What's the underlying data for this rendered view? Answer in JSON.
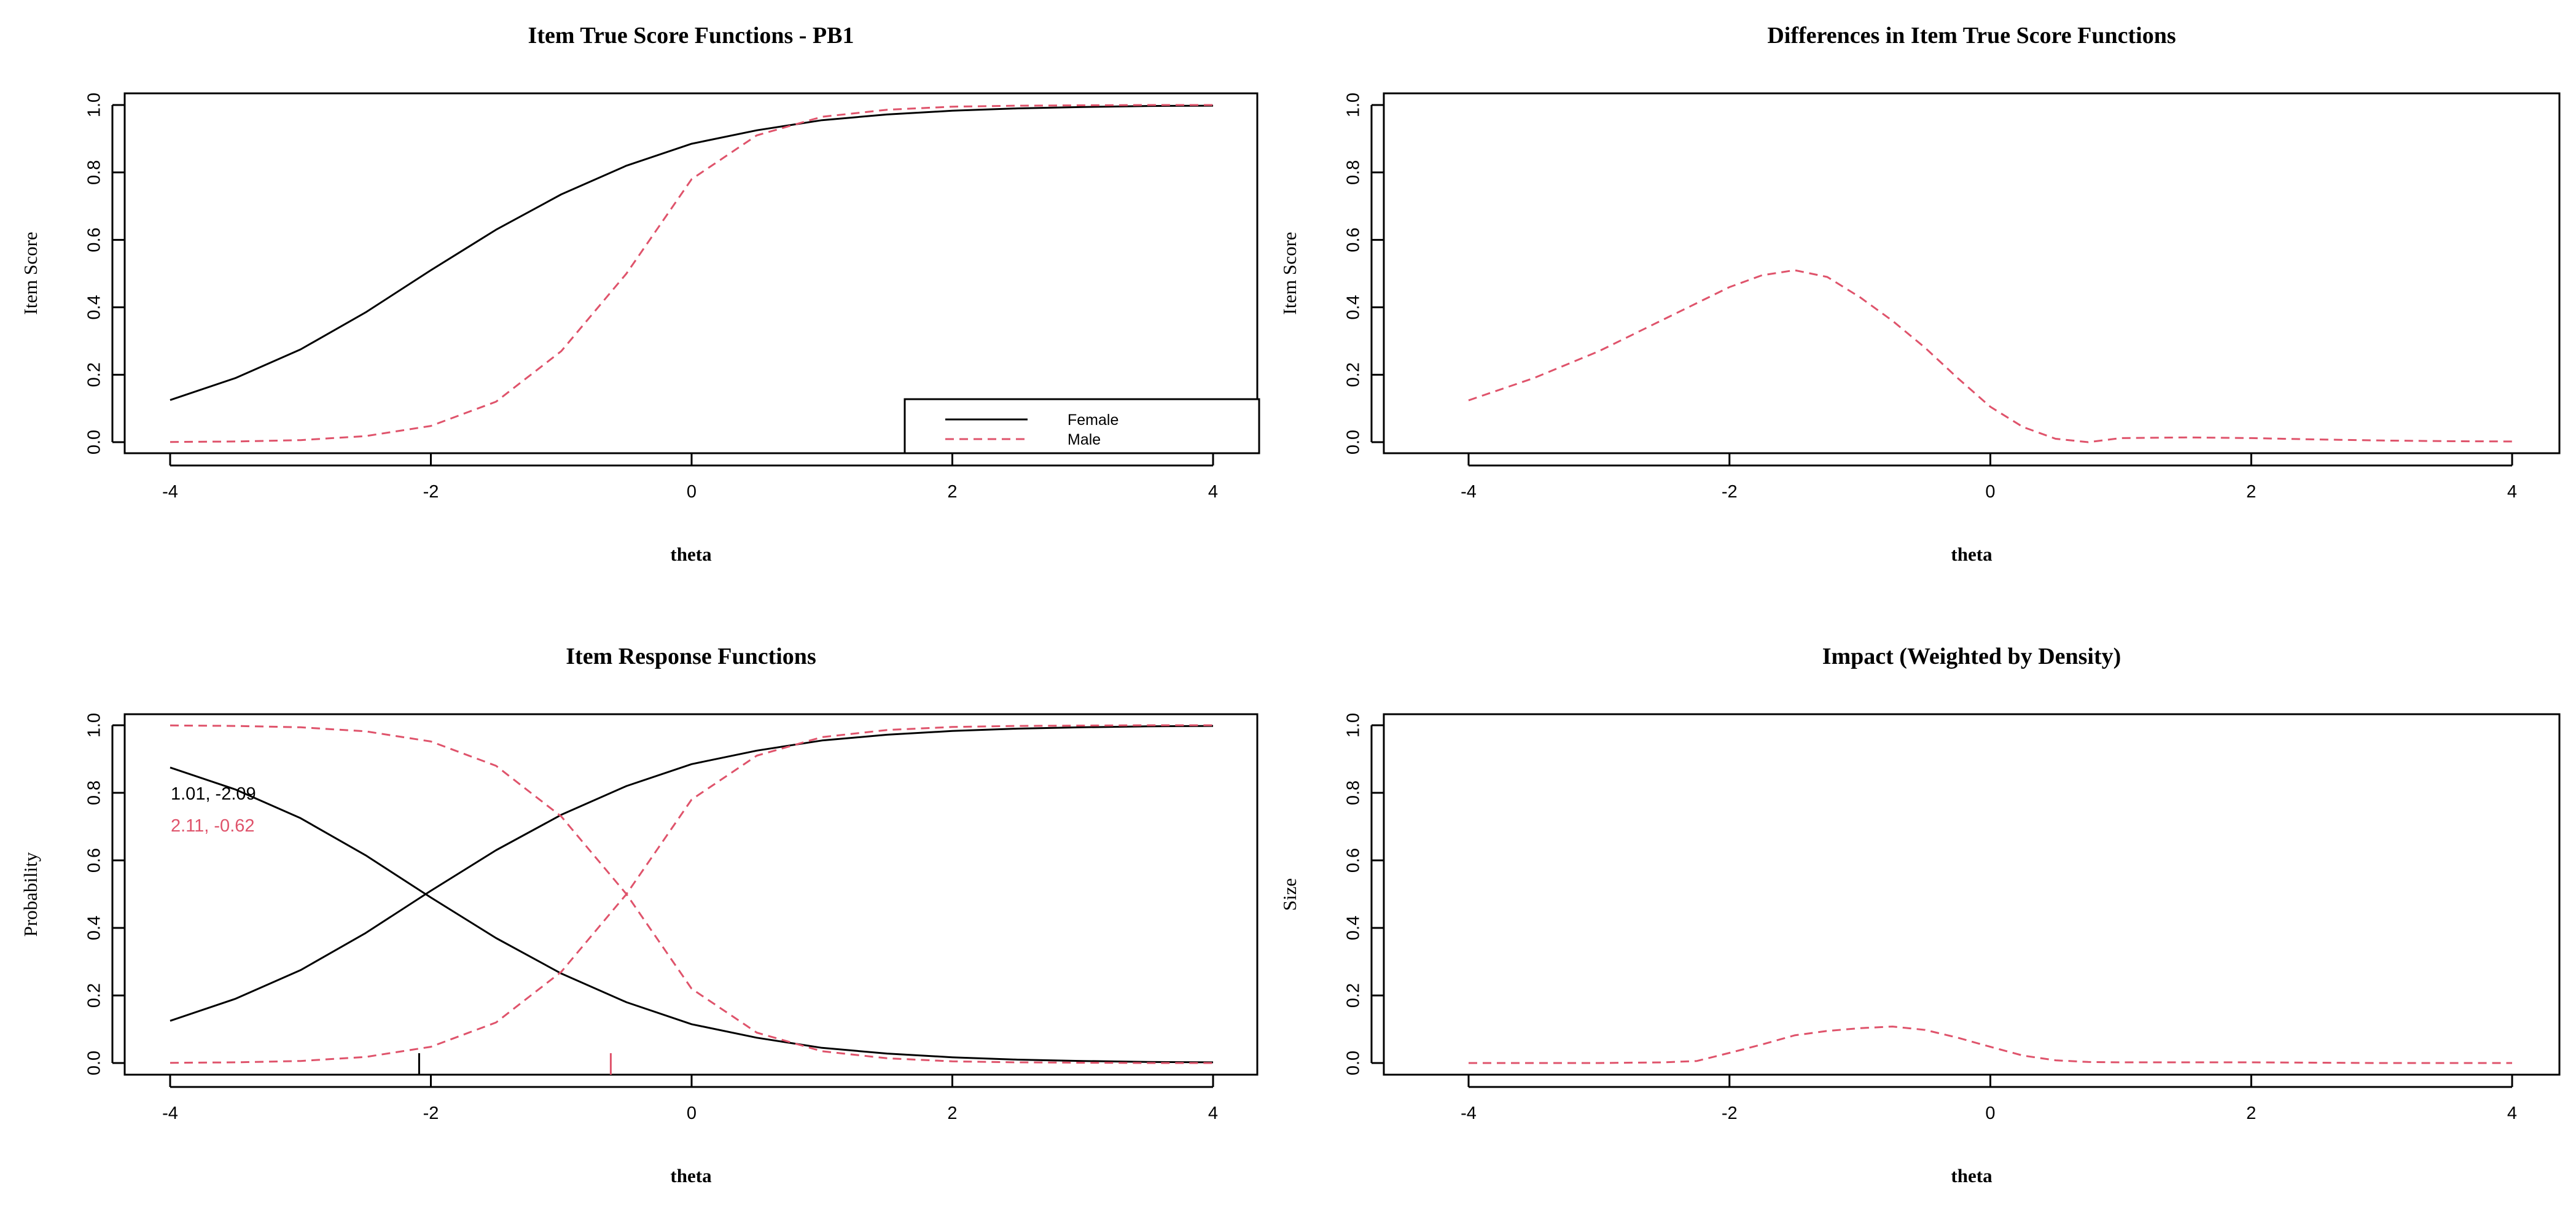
{
  "colors": {
    "female": "#000000",
    "male": "#DF536B"
  },
  "chart_data": [
    {
      "type": "line",
      "title": "Item True Score Functions - PB1",
      "xlabel": "theta",
      "ylabel": "Item Score",
      "xlim": [
        -4,
        4
      ],
      "ylim": [
        0,
        1
      ],
      "xticks": [
        "-4",
        "-2",
        "0",
        "2",
        "4"
      ],
      "yticks": [
        "0.0",
        "0.2",
        "0.4",
        "0.6",
        "0.8",
        "1.0"
      ],
      "legend": {
        "position": "bottom-right",
        "entries": [
          "Female",
          "Male"
        ]
      },
      "series": [
        {
          "name": "Female",
          "style": "solid",
          "color": "#000000",
          "x": [
            -4,
            -3.5,
            -3,
            -2.5,
            -2,
            -1.5,
            -1,
            -0.5,
            0,
            0.5,
            1,
            1.5,
            2,
            2.5,
            3,
            3.5,
            4
          ],
          "values": [
            0.125,
            0.19,
            0.275,
            0.385,
            0.51,
            0.63,
            0.735,
            0.82,
            0.885,
            0.925,
            0.955,
            0.972,
            0.983,
            0.99,
            0.994,
            0.997,
            0.998
          ]
        },
        {
          "name": "Male",
          "style": "dashed",
          "color": "#DF536B",
          "x": [
            -4,
            -3.5,
            -3,
            -2.5,
            -2,
            -1.5,
            -1,
            -0.5,
            0,
            0.5,
            1,
            1.5,
            2,
            2.5,
            3,
            3.5,
            4
          ],
          "values": [
            0.0006,
            0.002,
            0.006,
            0.018,
            0.048,
            0.12,
            0.27,
            0.5,
            0.78,
            0.91,
            0.965,
            0.986,
            0.995,
            0.998,
            0.999,
            1.0,
            1.0
          ]
        }
      ]
    },
    {
      "type": "line",
      "title": "Differences in Item True Score Functions",
      "xlabel": "theta",
      "ylabel": "Item Score",
      "xlim": [
        -4,
        4
      ],
      "ylim": [
        0,
        1
      ],
      "xticks": [
        "-4",
        "-2",
        "0",
        "2",
        "4"
      ],
      "yticks": [
        "0.0",
        "0.2",
        "0.4",
        "0.6",
        "0.8",
        "1.0"
      ],
      "series": [
        {
          "style": "dashed",
          "color": "#DF536B",
          "x": [
            -4,
            -3.5,
            -3,
            -2.5,
            -2,
            -1.75,
            -1.5,
            -1.25,
            -1,
            -0.75,
            -0.5,
            -0.25,
            0,
            0.25,
            0.5,
            0.75,
            1,
            1.5,
            2,
            2.5,
            3,
            3.5,
            4
          ],
          "values": [
            0.124,
            0.19,
            0.27,
            0.365,
            0.46,
            0.495,
            0.51,
            0.49,
            0.43,
            0.36,
            0.28,
            0.19,
            0.105,
            0.045,
            0.01,
            0.0,
            0.012,
            0.014,
            0.012,
            0.008,
            0.005,
            0.003,
            0.002
          ]
        }
      ]
    },
    {
      "type": "line",
      "title": "Item Response Functions",
      "xlabel": "theta",
      "ylabel": "Probability",
      "xlim": [
        -4,
        4
      ],
      "ylim": [
        0,
        1
      ],
      "xticks": [
        "-4",
        "-2",
        "0",
        "2",
        "4"
      ],
      "yticks": [
        "0.0",
        "0.2",
        "0.4",
        "0.6",
        "0.8",
        "1.0"
      ],
      "annotations": [
        {
          "text": "1.01, -2.09",
          "color": "#000000"
        },
        {
          "text": "2.11, -0.62",
          "color": "#DF536B"
        }
      ],
      "rug": [
        {
          "x": -2.09,
          "color": "#000000"
        },
        {
          "x": -0.62,
          "color": "#DF536B"
        }
      ],
      "series": [
        {
          "name": "Female",
          "style": "solid",
          "color": "#000000",
          "x": [
            -4,
            -3.5,
            -3,
            -2.5,
            -2,
            -1.5,
            -1,
            -0.5,
            0,
            0.5,
            1,
            1.5,
            2,
            2.5,
            3,
            3.5,
            4
          ],
          "values": [
            0.125,
            0.19,
            0.275,
            0.385,
            0.51,
            0.63,
            0.735,
            0.82,
            0.885,
            0.925,
            0.955,
            0.972,
            0.983,
            0.99,
            0.994,
            0.997,
            0.998
          ]
        },
        {
          "name": "Female",
          "style": "solid",
          "color": "#000000",
          "x": [
            -4,
            -3.5,
            -3,
            -2.5,
            -2,
            -1.5,
            -1,
            -0.5,
            0,
            0.5,
            1,
            1.5,
            2,
            2.5,
            3,
            3.5,
            4
          ],
          "values": [
            0.875,
            0.81,
            0.725,
            0.615,
            0.49,
            0.37,
            0.265,
            0.18,
            0.115,
            0.075,
            0.045,
            0.028,
            0.017,
            0.01,
            0.006,
            0.003,
            0.002
          ]
        },
        {
          "name": "Male",
          "style": "dashed",
          "color": "#DF536B",
          "x": [
            -4,
            -3.5,
            -3,
            -2.5,
            -2,
            -1.5,
            -1,
            -0.5,
            0,
            0.5,
            1,
            1.5,
            2,
            2.5,
            3,
            3.5,
            4
          ],
          "values": [
            0.0006,
            0.002,
            0.006,
            0.018,
            0.048,
            0.12,
            0.27,
            0.5,
            0.78,
            0.91,
            0.965,
            0.986,
            0.995,
            0.998,
            0.999,
            1.0,
            1.0
          ]
        },
        {
          "name": "Male",
          "style": "dashed",
          "color": "#DF536B",
          "x": [
            -4,
            -3.5,
            -3,
            -2.5,
            -2,
            -1.5,
            -1,
            -0.5,
            0,
            0.5,
            1,
            1.5,
            2,
            2.5,
            3,
            3.5,
            4
          ],
          "values": [
            0.9994,
            0.998,
            0.994,
            0.982,
            0.952,
            0.88,
            0.73,
            0.5,
            0.22,
            0.09,
            0.035,
            0.014,
            0.005,
            0.002,
            0.001,
            0.0,
            0.0
          ]
        }
      ]
    },
    {
      "type": "line",
      "title": "Impact (Weighted by Density)",
      "xlabel": "theta",
      "ylabel": "Size",
      "xlim": [
        -4,
        4
      ],
      "ylim": [
        0,
        1
      ],
      "xticks": [
        "-4",
        "-2",
        "0",
        "2",
        "4"
      ],
      "yticks": [
        "0.0",
        "0.2",
        "0.4",
        "0.6",
        "0.8",
        "1.0"
      ],
      "series": [
        {
          "style": "dashed",
          "color": "#DF536B",
          "x": [
            -4,
            -3.5,
            -3,
            -2.5,
            -2.25,
            -2,
            -1.75,
            -1.5,
            -1.25,
            -1,
            -0.75,
            -0.5,
            -0.25,
            0,
            0.25,
            0.5,
            0.75,
            1,
            1.5,
            2,
            2.5,
            3,
            3.5,
            4
          ],
          "values": [
            0.0,
            0.0,
            0.0,
            0.002,
            0.006,
            0.03,
            0.055,
            0.082,
            0.095,
            0.103,
            0.108,
            0.098,
            0.075,
            0.048,
            0.022,
            0.008,
            0.003,
            0.002,
            0.002,
            0.002,
            0.001,
            0.0,
            0.0,
            0.0
          ]
        }
      ]
    }
  ]
}
